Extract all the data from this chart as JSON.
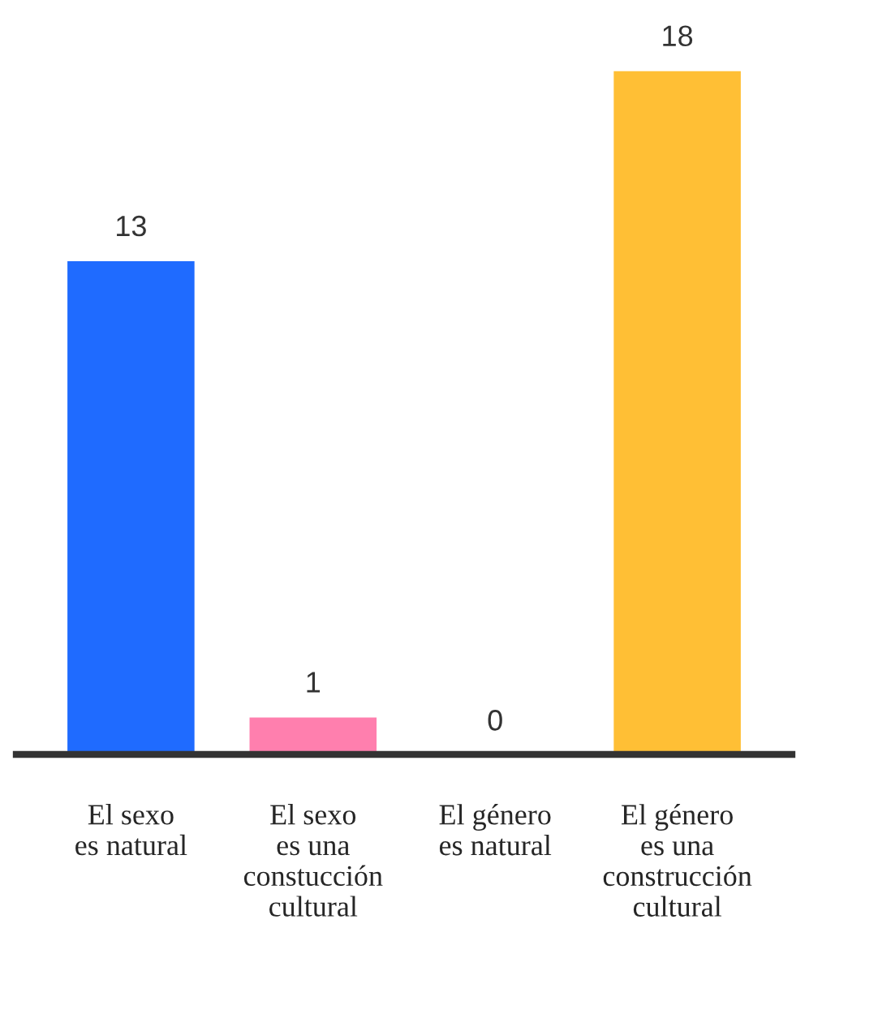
{
  "chart_data": {
    "type": "bar",
    "categories": [
      "El sexo\nes natural",
      "El sexo\nes una\nconstucción\ncultural",
      "El género\nes natural",
      "El género\nes una\nconstrucción\ncultural"
    ],
    "values": [
      13,
      1,
      0,
      18
    ],
    "colors": [
      "#1f6bff",
      "#ff7fae",
      null,
      "#ffbf35"
    ],
    "data_labels": true,
    "grid": false,
    "legend": false,
    "tick_labels": "x"
  }
}
